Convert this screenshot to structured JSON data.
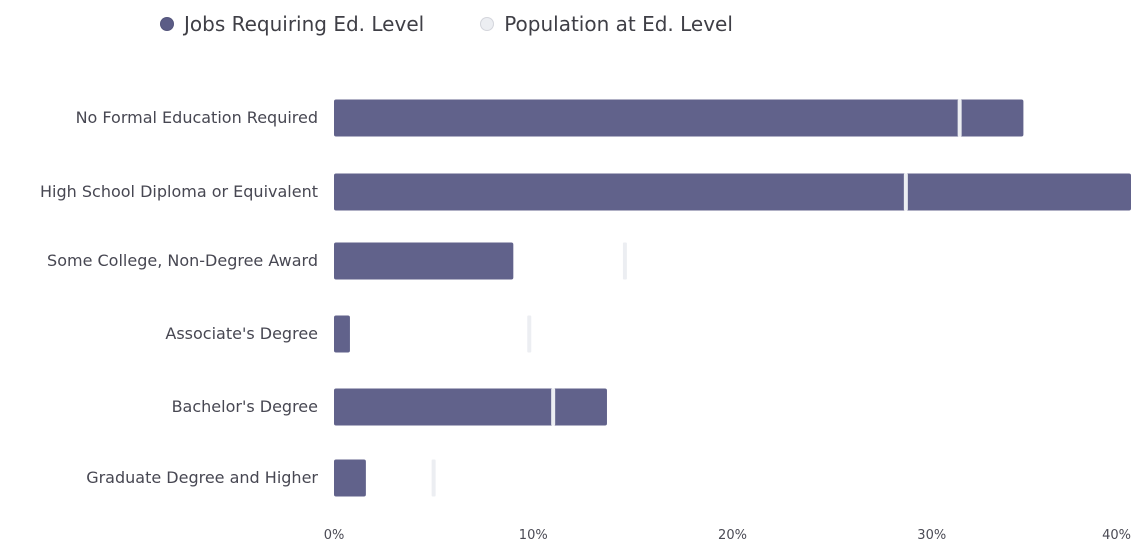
{
  "chart_data": {
    "type": "bar",
    "orientation": "horizontal",
    "categories": [
      "No Formal Education Required",
      "High School Diploma or Equivalent",
      "Some College, Non-Degree Award",
      "Associate's Degree",
      "Bachelor's Degree",
      "Graduate Degree and Higher"
    ],
    "series": [
      {
        "name": "Jobs Requiring Ed. Level",
        "style": "bar",
        "color": "#5b5c86",
        "values": [
          34.6,
          40.0,
          9.0,
          0.8,
          13.7,
          1.6
        ]
      },
      {
        "name": "Population at Ed. Level",
        "style": "marker",
        "color": "#eceef2",
        "values": [
          31.4,
          28.7,
          14.6,
          9.8,
          11.0,
          5.0
        ]
      }
    ],
    "xlim": [
      0,
      40
    ],
    "x_ticks": [
      0,
      10,
      20,
      30,
      40
    ],
    "x_tick_labels": [
      "0%",
      "10%",
      "20%",
      "30%",
      "40%"
    ],
    "legend_position": "top-left",
    "grid": false
  }
}
